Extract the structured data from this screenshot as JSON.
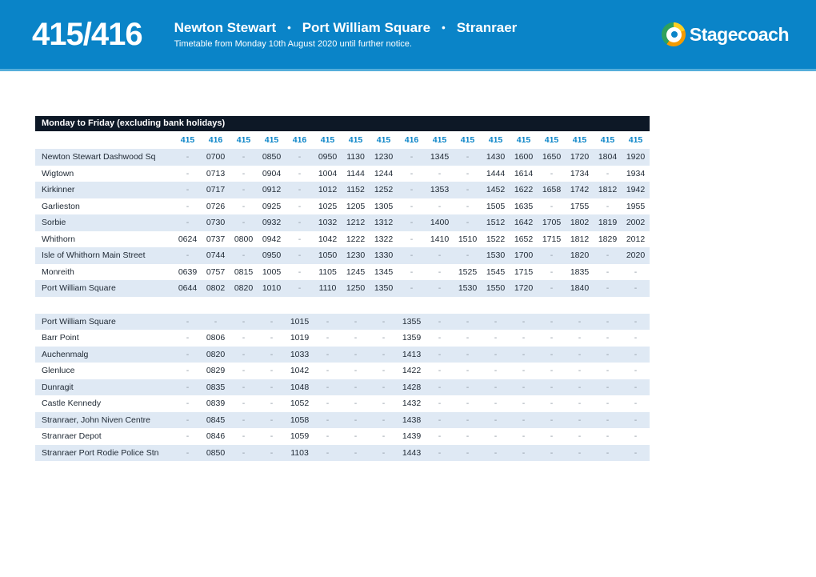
{
  "header": {
    "route_number": "415/416",
    "title_stops": [
      "Newton Stewart",
      "Port William Square",
      "Stranraer"
    ],
    "title_separator": "•",
    "subtitle": "Timetable from Monday 10th August 2020 until further notice.",
    "brand": "Stagecoach"
  },
  "colors": {
    "header_blue": "#0a84c8",
    "band_dark": "#0d1826",
    "row_alt_blue": "#dfe9f4",
    "route_number_blue": "#0a84c8",
    "logo_orange": "#f49b00",
    "logo_yellow": "#ffcf21",
    "logo_green": "#2fa05c",
    "text_dark": "#212b36"
  },
  "timetable": {
    "section_title": "Monday to Friday (excluding bank holidays)",
    "route_columns": [
      "415",
      "416",
      "415",
      "415",
      "416",
      "415",
      "415",
      "415",
      "416",
      "415",
      "415",
      "415",
      "415",
      "415",
      "415",
      "415",
      "415"
    ],
    "sections": [
      {
        "rows": [
          {
            "stop": "Newton Stewart Dashwood Sq",
            "times": [
              "-",
              "0700",
              "-",
              "0850",
              "-",
              "0950",
              "1130",
              "1230",
              "-",
              "1345",
              "-",
              "1430",
              "1600",
              "1650",
              "1720",
              "1804",
              "1920"
            ]
          },
          {
            "stop": "Wigtown",
            "times": [
              "-",
              "0713",
              "-",
              "0904",
              "-",
              "1004",
              "1144",
              "1244",
              "-",
              "-",
              "-",
              "1444",
              "1614",
              "-",
              "1734",
              "-",
              "1934"
            ]
          },
          {
            "stop": "Kirkinner",
            "times": [
              "-",
              "0717",
              "-",
              "0912",
              "-",
              "1012",
              "1152",
              "1252",
              "-",
              "1353",
              "-",
              "1452",
              "1622",
              "1658",
              "1742",
              "1812",
              "1942"
            ]
          },
          {
            "stop": "Garlieston",
            "times": [
              "-",
              "0726",
              "-",
              "0925",
              "-",
              "1025",
              "1205",
              "1305",
              "-",
              "-",
              "-",
              "1505",
              "1635",
              "-",
              "1755",
              "-",
              "1955"
            ]
          },
          {
            "stop": "Sorbie",
            "times": [
              "-",
              "0730",
              "-",
              "0932",
              "-",
              "1032",
              "1212",
              "1312",
              "-",
              "1400",
              "-",
              "1512",
              "1642",
              "1705",
              "1802",
              "1819",
              "2002"
            ]
          },
          {
            "stop": "Whithorn",
            "times": [
              "0624",
              "0737",
              "0800",
              "0942",
              "-",
              "1042",
              "1222",
              "1322",
              "-",
              "1410",
              "1510",
              "1522",
              "1652",
              "1715",
              "1812",
              "1829",
              "2012"
            ]
          },
          {
            "stop": "Isle of Whithorn Main Street",
            "times": [
              "-",
              "0744",
              "-",
              "0950",
              "-",
              "1050",
              "1230",
              "1330",
              "-",
              "-",
              "-",
              "1530",
              "1700",
              "-",
              "1820",
              "-",
              "2020"
            ]
          },
          {
            "stop": "Monreith",
            "times": [
              "0639",
              "0757",
              "0815",
              "1005",
              "-",
              "1105",
              "1245",
              "1345",
              "-",
              "-",
              "1525",
              "1545",
              "1715",
              "-",
              "1835",
              "-",
              "-"
            ]
          },
          {
            "stop": "Port William Square",
            "times": [
              "0644",
              "0802",
              "0820",
              "1010",
              "-",
              "1110",
              "1250",
              "1350",
              "-",
              "-",
              "1530",
              "1550",
              "1720",
              "-",
              "1840",
              "-",
              "-"
            ]
          }
        ]
      },
      {
        "rows": [
          {
            "stop": "Port William Square",
            "times": [
              "-",
              "-",
              "-",
              "-",
              "1015",
              "-",
              "-",
              "-",
              "1355",
              "-",
              "-",
              "-",
              "-",
              "-",
              "-",
              "-",
              "-"
            ]
          },
          {
            "stop": "Barr Point",
            "times": [
              "-",
              "0806",
              "-",
              "-",
              "1019",
              "-",
              "-",
              "-",
              "1359",
              "-",
              "-",
              "-",
              "-",
              "-",
              "-",
              "-",
              "-"
            ]
          },
          {
            "stop": "Auchenmalg",
            "times": [
              "-",
              "0820",
              "-",
              "-",
              "1033",
              "-",
              "-",
              "-",
              "1413",
              "-",
              "-",
              "-",
              "-",
              "-",
              "-",
              "-",
              "-"
            ]
          },
          {
            "stop": "Glenluce",
            "times": [
              "-",
              "0829",
              "-",
              "-",
              "1042",
              "-",
              "-",
              "-",
              "1422",
              "-",
              "-",
              "-",
              "-",
              "-",
              "-",
              "-",
              "-"
            ]
          },
          {
            "stop": "Dunragit",
            "times": [
              "-",
              "0835",
              "-",
              "-",
              "1048",
              "-",
              "-",
              "-",
              "1428",
              "-",
              "-",
              "-",
              "-",
              "-",
              "-",
              "-",
              "-"
            ]
          },
          {
            "stop": "Castle Kennedy",
            "times": [
              "-",
              "0839",
              "-",
              "-",
              "1052",
              "-",
              "-",
              "-",
              "1432",
              "-",
              "-",
              "-",
              "-",
              "-",
              "-",
              "-",
              "-"
            ]
          },
          {
            "stop": "Stranraer, John Niven Centre",
            "times": [
              "-",
              "0845",
              "-",
              "-",
              "1058",
              "-",
              "-",
              "-",
              "1438",
              "-",
              "-",
              "-",
              "-",
              "-",
              "-",
              "-",
              "-"
            ]
          },
          {
            "stop": "Stranraer Depot",
            "times": [
              "-",
              "0846",
              "-",
              "-",
              "1059",
              "-",
              "-",
              "-",
              "1439",
              "-",
              "-",
              "-",
              "-",
              "-",
              "-",
              "-",
              "-"
            ]
          },
          {
            "stop": "Stranraer Port Rodie Police Stn",
            "times": [
              "-",
              "0850",
              "-",
              "-",
              "1103",
              "-",
              "-",
              "-",
              "1443",
              "-",
              "-",
              "-",
              "-",
              "-",
              "-",
              "-",
              "-"
            ]
          }
        ]
      }
    ]
  }
}
